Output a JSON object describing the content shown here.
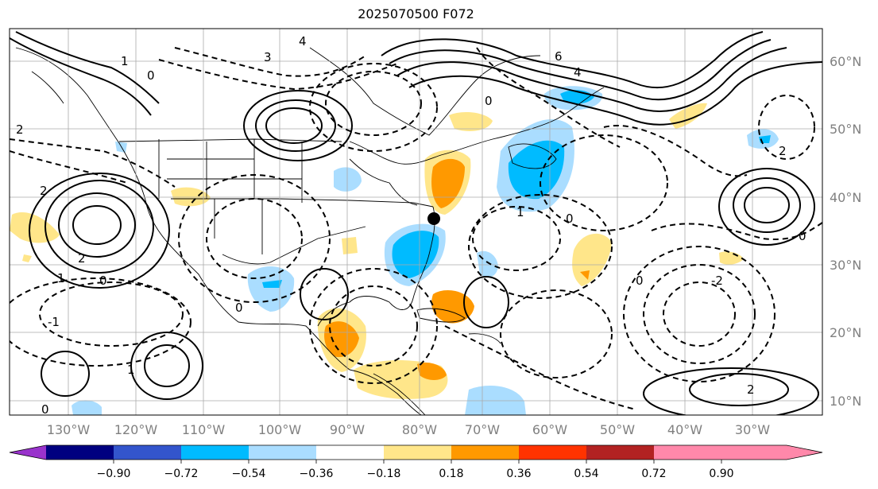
{
  "title": "2025070500 F072",
  "map": {
    "lon_labels": [
      "130°W",
      "120°W",
      "110°W",
      "100°W",
      "90°W",
      "80°W",
      "70°W",
      "60°W",
      "50°W",
      "40°W",
      "30°W"
    ],
    "lat_labels": [
      "60°N",
      "50°N",
      "40°N",
      "30°N",
      "20°N",
      "10°N"
    ],
    "contour_labels": [
      "4",
      "3",
      "2",
      "1",
      "0",
      "-1",
      "-2",
      "6"
    ]
  },
  "colorbar": {
    "colors": [
      "#9933cc",
      "#000080",
      "#3355cc",
      "#00bbff",
      "#aaddff",
      "#ffffff",
      "#ffe68a",
      "#ff9900",
      "#ff3300",
      "#b22222",
      "#ff88aa",
      "#ff88aa"
    ],
    "ticks": [
      "−0.90",
      "−0.72",
      "−0.54",
      "−0.36",
      "−0.18",
      "0.18",
      "0.36",
      "0.54",
      "0.72",
      "0.90"
    ]
  }
}
